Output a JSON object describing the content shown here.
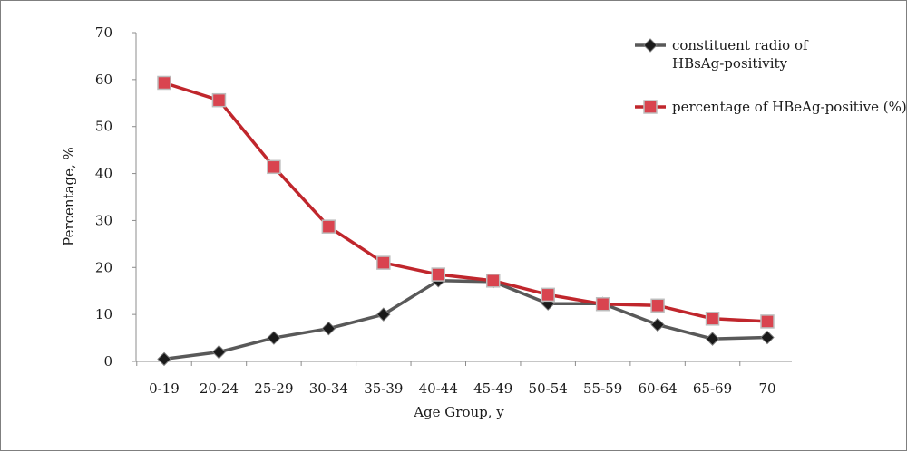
{
  "chart_data": {
    "type": "line",
    "title": "",
    "xlabel": "Age Group, y",
    "ylabel": "Percentage, %",
    "ylim": [
      0,
      70
    ],
    "yticks": [
      0,
      10,
      20,
      30,
      40,
      50,
      60,
      70
    ],
    "grid": false,
    "legend_position": "top-right",
    "categories": [
      "0-19",
      "20-24",
      "25-29",
      "30-34",
      "35-39",
      "40-44",
      "45-49",
      "50-54",
      "55-59",
      "60-64",
      "65-69",
      "70"
    ],
    "series": [
      {
        "name_lines": [
          "constituent radio of",
          "HBsAg-positivity"
        ],
        "marker": "diamond",
        "color": "#595959",
        "marker_color": "#1a1a1a",
        "values": [
          0.5,
          2.0,
          5.0,
          7.0,
          10.0,
          17.2,
          17.0,
          12.3,
          12.3,
          7.8,
          4.8,
          5.1
        ]
      },
      {
        "name_lines": [
          "percentage of HBeAg-positive (%)"
        ],
        "marker": "square",
        "color": "#c0262c",
        "marker_color": "#d9444f",
        "values": [
          59.3,
          55.6,
          41.4,
          28.7,
          21.0,
          18.5,
          17.2,
          14.2,
          12.2,
          11.9,
          9.1,
          8.5
        ]
      }
    ]
  }
}
